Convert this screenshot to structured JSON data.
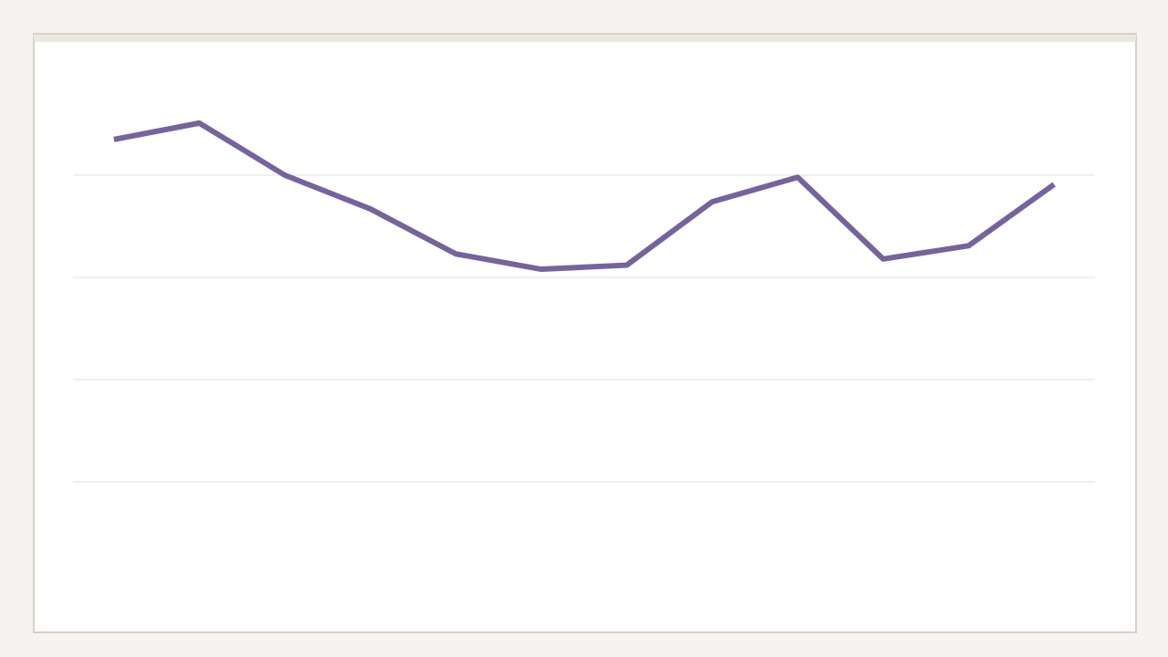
{
  "chart_data": {
    "type": "line",
    "categories": [
      null,
      null,
      null,
      null,
      null,
      null,
      null,
      null,
      null,
      null,
      null,
      null
    ],
    "series": [
      {
        "color": "#76639e",
        "values": [
          4.35,
          4.51,
          4.0,
          3.67,
          3.23,
          3.08,
          3.12,
          3.74,
          3.98,
          3.18,
          3.31,
          3.91
        ]
      }
    ],
    "ylim": [
      0,
      5
    ],
    "yticks": [
      1,
      2,
      3,
      4
    ],
    "grid": true
  }
}
